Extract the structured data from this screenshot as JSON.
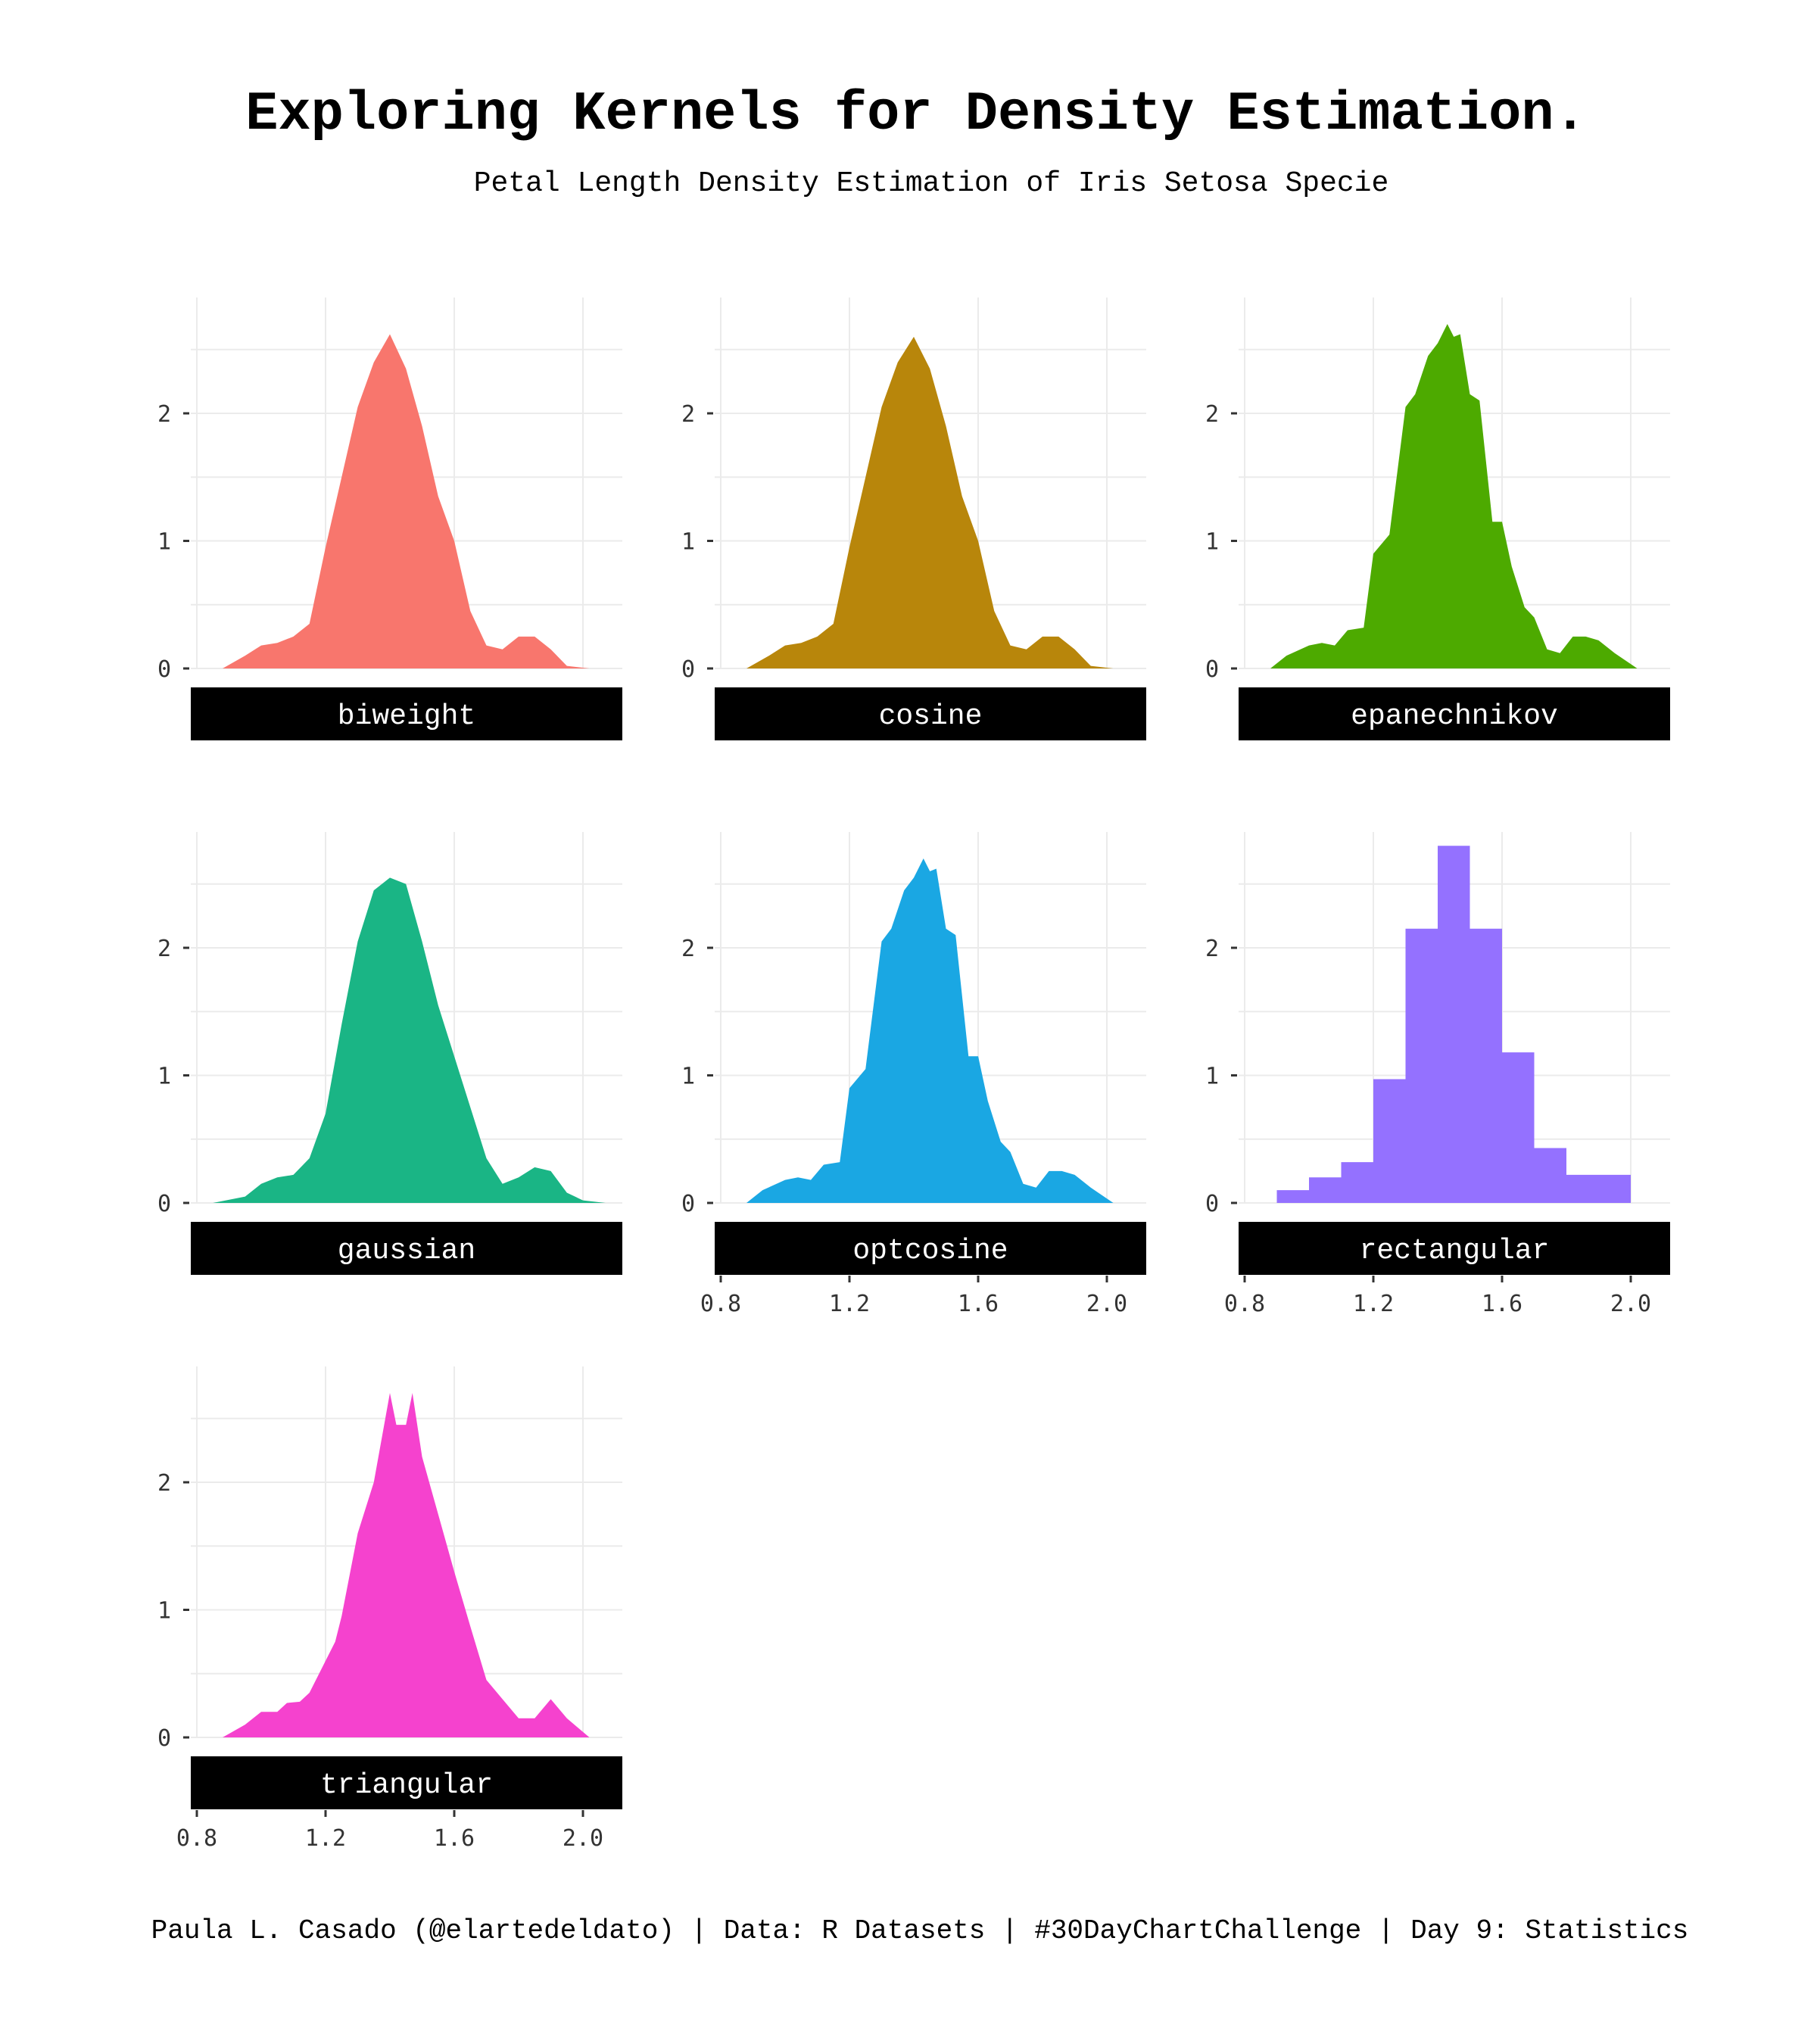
{
  "title": "Exploring Kernels for Density Estimation.",
  "subtitle": "Petal Length Density Estimation of Iris Setosa Specie",
  "caption": "Paula L. Casado (@elartedeldato) | Data: R Datasets | #30DayChartChallenge | Day 9: Statistics",
  "chart_data": {
    "type": "area",
    "facet_by": "kernel",
    "x_ticks": [
      0.8,
      1.2,
      1.6,
      2.0
    ],
    "x_tick_labels": [
      "0.8",
      "1.2",
      "1.6",
      "2.0"
    ],
    "y_ticks": [
      0,
      1,
      2
    ],
    "y_tick_labels": [
      "0",
      "1",
      "2"
    ],
    "xlim": [
      0.8,
      2.1
    ],
    "ylim": [
      0,
      2.8
    ],
    "grid": true,
    "legend": "none",
    "series": [
      {
        "name": "biweight",
        "color": "#F8766D",
        "x": [
          0.88,
          0.95,
          1.0,
          1.05,
          1.1,
          1.15,
          1.2,
          1.25,
          1.3,
          1.35,
          1.4,
          1.45,
          1.5,
          1.55,
          1.6,
          1.65,
          1.7,
          1.75,
          1.8,
          1.85,
          1.9,
          1.95,
          2.02
        ],
        "y": [
          0.0,
          0.1,
          0.18,
          0.2,
          0.25,
          0.35,
          0.95,
          1.5,
          2.05,
          2.4,
          2.62,
          2.35,
          1.9,
          1.35,
          1.0,
          0.45,
          0.18,
          0.15,
          0.25,
          0.25,
          0.15,
          0.02,
          0.0
        ]
      },
      {
        "name": "cosine",
        "color": "#B8860B",
        "x": [
          0.88,
          0.95,
          1.0,
          1.05,
          1.1,
          1.15,
          1.2,
          1.25,
          1.3,
          1.35,
          1.4,
          1.45,
          1.5,
          1.55,
          1.6,
          1.65,
          1.7,
          1.75,
          1.8,
          1.85,
          1.9,
          1.95,
          2.02
        ],
        "y": [
          0.0,
          0.1,
          0.18,
          0.2,
          0.25,
          0.35,
          0.95,
          1.5,
          2.05,
          2.4,
          2.6,
          2.35,
          1.9,
          1.35,
          1.0,
          0.45,
          0.18,
          0.15,
          0.25,
          0.25,
          0.15,
          0.02,
          0.0
        ]
      },
      {
        "name": "epanechnikov",
        "color": "#4DAA00",
        "x": [
          0.88,
          0.93,
          1.0,
          1.04,
          1.08,
          1.12,
          1.17,
          1.2,
          1.25,
          1.3,
          1.33,
          1.37,
          1.4,
          1.43,
          1.45,
          1.47,
          1.5,
          1.53,
          1.57,
          1.6,
          1.63,
          1.67,
          1.7,
          1.74,
          1.78,
          1.82,
          1.86,
          1.9,
          1.95,
          2.02
        ],
        "y": [
          0.0,
          0.1,
          0.18,
          0.2,
          0.18,
          0.3,
          0.32,
          0.9,
          1.05,
          2.05,
          2.15,
          2.45,
          2.55,
          2.7,
          2.6,
          2.62,
          2.15,
          2.1,
          1.15,
          1.15,
          0.8,
          0.48,
          0.4,
          0.15,
          0.12,
          0.25,
          0.25,
          0.22,
          0.12,
          0.0
        ]
      },
      {
        "name": "gaussian",
        "color": "#1AB585",
        "x": [
          0.85,
          0.95,
          1.0,
          1.05,
          1.1,
          1.15,
          1.2,
          1.25,
          1.3,
          1.35,
          1.4,
          1.45,
          1.5,
          1.55,
          1.6,
          1.65,
          1.7,
          1.75,
          1.8,
          1.85,
          1.9,
          1.95,
          2.0,
          2.07
        ],
        "y": [
          0.0,
          0.05,
          0.15,
          0.2,
          0.22,
          0.35,
          0.7,
          1.4,
          2.05,
          2.45,
          2.55,
          2.5,
          2.05,
          1.55,
          1.15,
          0.75,
          0.35,
          0.15,
          0.2,
          0.28,
          0.25,
          0.08,
          0.02,
          0.0
        ]
      },
      {
        "name": "optcosine",
        "color": "#1AA7E3",
        "x": [
          0.88,
          0.93,
          1.0,
          1.04,
          1.08,
          1.12,
          1.17,
          1.2,
          1.25,
          1.3,
          1.33,
          1.37,
          1.4,
          1.43,
          1.45,
          1.47,
          1.5,
          1.53,
          1.57,
          1.6,
          1.63,
          1.67,
          1.7,
          1.74,
          1.78,
          1.82,
          1.86,
          1.9,
          1.95,
          2.02
        ],
        "y": [
          0.0,
          0.1,
          0.18,
          0.2,
          0.18,
          0.3,
          0.32,
          0.9,
          1.05,
          2.05,
          2.15,
          2.45,
          2.55,
          2.7,
          2.6,
          2.62,
          2.15,
          2.1,
          1.15,
          1.15,
          0.8,
          0.48,
          0.4,
          0.15,
          0.12,
          0.25,
          0.25,
          0.22,
          0.12,
          0.0
        ]
      },
      {
        "name": "rectangular",
        "color": "#9471FF",
        "x": [
          0.9,
          0.9,
          1.0,
          1.0,
          1.1,
          1.1,
          1.2,
          1.2,
          1.3,
          1.3,
          1.4,
          1.4,
          1.5,
          1.5,
          1.6,
          1.6,
          1.7,
          1.7,
          1.8,
          1.8,
          2.0,
          2.0
        ],
        "y": [
          0.0,
          0.1,
          0.1,
          0.2,
          0.2,
          0.32,
          0.32,
          0.97,
          0.97,
          2.15,
          2.15,
          2.8,
          2.8,
          2.15,
          2.15,
          1.18,
          1.18,
          0.43,
          0.43,
          0.22,
          0.22,
          0.0
        ]
      },
      {
        "name": "triangular",
        "color": "#F542CE",
        "x": [
          0.88,
          0.95,
          1.0,
          1.05,
          1.08,
          1.12,
          1.15,
          1.2,
          1.23,
          1.25,
          1.3,
          1.35,
          1.4,
          1.42,
          1.45,
          1.47,
          1.5,
          1.55,
          1.6,
          1.65,
          1.7,
          1.75,
          1.8,
          1.85,
          1.9,
          1.95,
          2.02
        ],
        "y": [
          0.0,
          0.1,
          0.2,
          0.2,
          0.27,
          0.28,
          0.35,
          0.6,
          0.75,
          0.95,
          1.6,
          2.0,
          2.7,
          2.45,
          2.45,
          2.7,
          2.2,
          1.75,
          1.3,
          0.87,
          0.45,
          0.3,
          0.15,
          0.15,
          0.3,
          0.15,
          0.0
        ]
      }
    ]
  }
}
